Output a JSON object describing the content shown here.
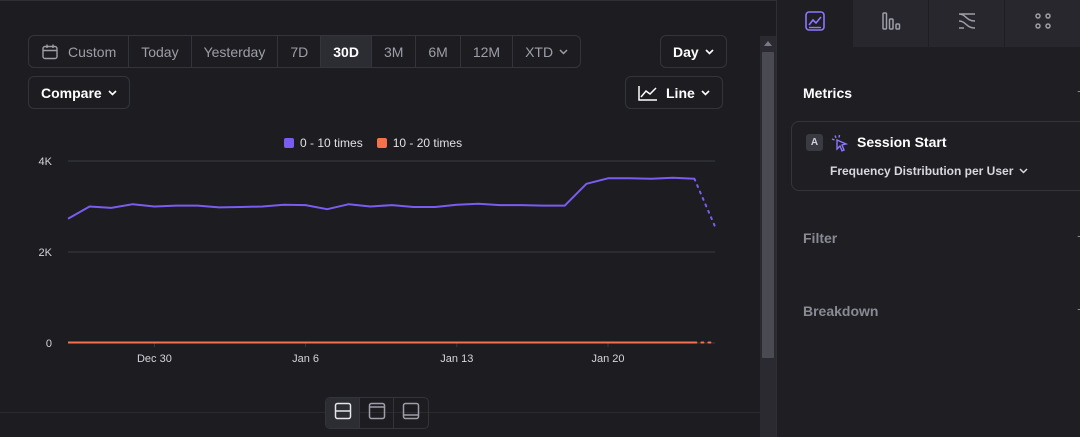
{
  "toolbar": {
    "ranges": [
      {
        "label": "Custom",
        "icon": "calendar-icon",
        "active": false
      },
      {
        "label": "Today",
        "active": false
      },
      {
        "label": "Yesterday",
        "active": false
      },
      {
        "label": "7D",
        "active": false
      },
      {
        "label": "30D",
        "active": true
      },
      {
        "label": "3M",
        "active": false
      },
      {
        "label": "6M",
        "active": false
      },
      {
        "label": "12M",
        "active": false
      },
      {
        "label": "XTD",
        "active": false,
        "dropdown": true
      }
    ],
    "granularity_label": "Day",
    "compare_label": "Compare",
    "chart_type_label": "Line"
  },
  "legend": [
    {
      "name": "0 - 10 times",
      "color": "#7b5cf0"
    },
    {
      "name": "10 - 20 times",
      "color": "#f4714c"
    }
  ],
  "chart_data": {
    "type": "line",
    "y_ticks": [
      "4K",
      "2K",
      "0"
    ],
    "ylim": [
      0,
      4000
    ],
    "x_ticks": [
      {
        "label": "Dec 30",
        "index": 4
      },
      {
        "label": "Jan 6",
        "index": 11
      },
      {
        "label": "Jan 13",
        "index": 18
      },
      {
        "label": "Jan 20",
        "index": 25
      }
    ],
    "series": [
      {
        "name": "0 - 10 times",
        "color": "#7b5cf0",
        "values": [
          2730,
          3000,
          2970,
          3050,
          3000,
          3020,
          3020,
          2980,
          2990,
          3000,
          3040,
          3030,
          2940,
          3050,
          3000,
          3030,
          2990,
          2990,
          3040,
          3060,
          3030,
          3030,
          3020,
          3020,
          3500,
          3620,
          3620,
          3610,
          3630,
          3610
        ],
        "partial_values": [
          3610,
          2560
        ]
      },
      {
        "name": "10 - 20 times",
        "color": "#f4714c",
        "values": [
          10,
          10,
          10,
          10,
          10,
          10,
          10,
          10,
          10,
          10,
          10,
          10,
          10,
          10,
          10,
          10,
          10,
          10,
          10,
          10,
          10,
          10,
          10,
          10,
          10,
          10,
          10,
          10,
          10,
          10
        ],
        "partial_values": [
          10,
          10
        ]
      }
    ]
  },
  "view_buttons": [
    {
      "icon": "split-view-icon",
      "active": true
    },
    {
      "icon": "top-panel-icon",
      "active": false
    },
    {
      "icon": "bottom-panel-icon",
      "active": false
    }
  ],
  "sidebar": {
    "tabs": [
      {
        "icon": "insights-chart-icon",
        "active": true
      },
      {
        "icon": "funnel-bars-icon",
        "active": false
      },
      {
        "icon": "flows-icon",
        "active": false
      },
      {
        "icon": "retention-grid-icon",
        "active": false
      }
    ],
    "metrics_title": "Metrics",
    "metric": {
      "badge": "A",
      "event_icon": "session-start-icon",
      "name": "Session Start",
      "measure": "Frequency Distribution per User"
    },
    "filter_title": "Filter",
    "breakdown_title": "Breakdown"
  }
}
